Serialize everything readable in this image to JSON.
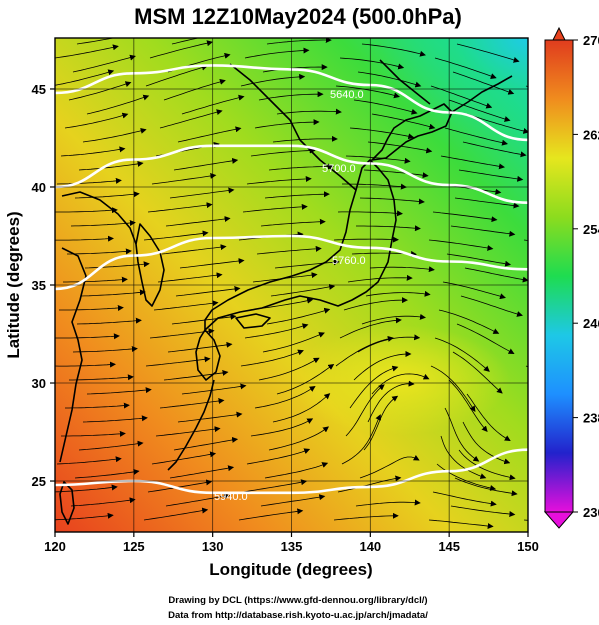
{
  "title": "MSM 12Z10May2024 (500.0hPa)",
  "xlabel": "Longitude (degrees)",
  "ylabel": "Latitude  (degrees)",
  "x_ticks": [
    "120",
    "125",
    "130",
    "135",
    "140",
    "145",
    "150"
  ],
  "y_ticks": [
    "25",
    "30",
    "35",
    "40",
    "45"
  ],
  "colorbar": {
    "ticks": [
      "270",
      "262",
      "254",
      "246",
      "238",
      "230"
    ],
    "min": 230,
    "max": 270,
    "colors": [
      "#e60fdc",
      "#2222cc",
      "#1e90ff",
      "#1ec8e6",
      "#1edc50",
      "#8cdc1e",
      "#e6e61e",
      "#f08c1e",
      "#e03c1e"
    ]
  },
  "contour_labels": [
    "5640.0",
    "5700.0",
    "5760.0",
    "5940.0"
  ],
  "credits": {
    "line1": "Drawing by DCL (https://www.gfd-dennou.org/library/dcl/)",
    "line2": "Data from http://database.rish.kyoto-u.ac.jp/arch/jmadata/"
  },
  "chart_data": {
    "type": "heatmap",
    "title": "MSM 12Z10May2024 (500.0hPa)",
    "xlabel": "Longitude (degrees)",
    "ylabel": "Latitude  (degrees)",
    "xlim": [
      120,
      150
    ],
    "ylim": [
      22.4,
      47.6
    ],
    "field": "temperature (K), colour shaded",
    "colorbar_range": [
      230,
      270
    ],
    "overlays": [
      "geopotential height contours (white)",
      "wind streamlines (black)",
      "coastlines"
    ],
    "contours": [
      {
        "label": "5640.0",
        "lon": [
          120,
          125,
          130,
          135,
          140,
          145,
          150
        ],
        "lat": [
          44.8,
          45.8,
          46.2,
          46.0,
          45.2,
          43.8,
          42.4
        ]
      },
      {
        "label": "5700.0",
        "lon": [
          120,
          125,
          130,
          135,
          140,
          145,
          150
        ],
        "lat": [
          40.0,
          41.4,
          42.1,
          42.1,
          41.2,
          40.1,
          39.2
        ]
      },
      {
        "label": "5760.0",
        "lon": [
          120,
          125,
          130,
          135,
          140,
          145,
          150
        ],
        "lat": [
          34.8,
          36.5,
          37.4,
          37.5,
          36.9,
          36.2,
          35.8
        ]
      },
      {
        "label": "5940.0",
        "lon": [
          120,
          125,
          130,
          135,
          140,
          145,
          150
        ],
        "lat": [
          24.8,
          25.0,
          24.4,
          24.4,
          24.7,
          25.5,
          26.6
        ]
      }
    ]
  }
}
